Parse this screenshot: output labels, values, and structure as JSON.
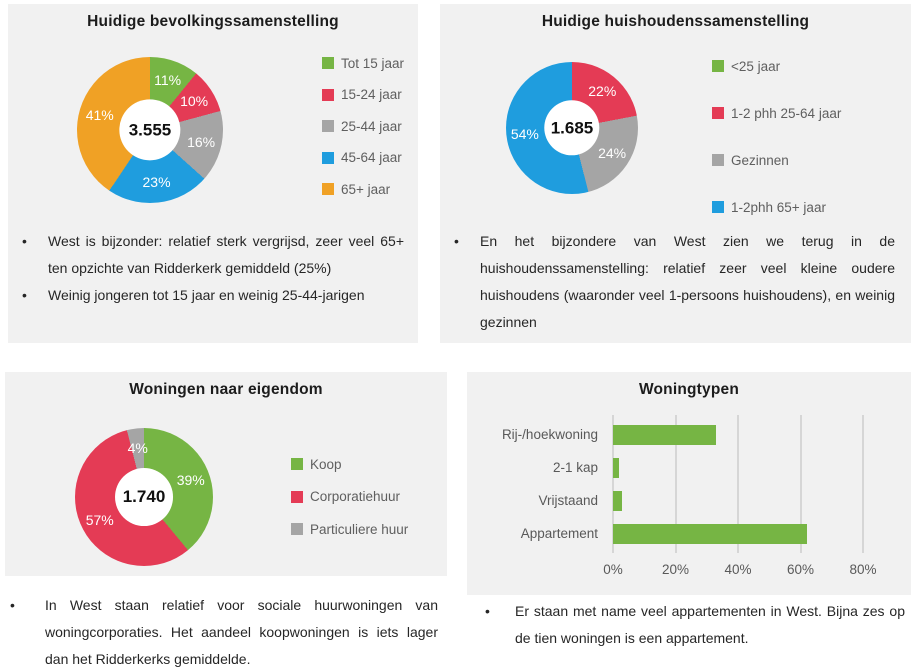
{
  "colors": {
    "green": "#76b544",
    "red": "#e43b55",
    "gray": "#a5a5a5",
    "blue": "#1f9dde",
    "orange": "#f0a125",
    "panel_background": "#f1f1f1",
    "gridline": "#d6d6d6",
    "legend_text": "#5f5f5f",
    "axis_text": "#595959"
  },
  "chart_data": [
    {
      "id": "bevolking",
      "type": "pie",
      "subtype": "donut",
      "title": "Huidige bevolkingssamenstelling",
      "center_label": "3.555",
      "legend_position": "right",
      "segments": [
        {
          "label": "Tot 15 jaar",
          "value": 11,
          "color": "#76b544"
        },
        {
          "label": "15-24 jaar",
          "value": 10,
          "color": "#e43b55"
        },
        {
          "label": "25-44 jaar",
          "value": 16,
          "color": "#a5a5a5"
        },
        {
          "label": "45-64 jaar",
          "value": 23,
          "color": "#1f9dde"
        },
        {
          "label": "65+ jaar",
          "value": 41,
          "color": "#f0a125"
        }
      ]
    },
    {
      "id": "huishoudens",
      "type": "pie",
      "subtype": "donut",
      "title": "Huidige huishoudenssamenstelling",
      "center_label": "1.685",
      "legend_position": "right",
      "segments": [
        {
          "label": "<25 jaar",
          "value": 0,
          "color": "#76b544"
        },
        {
          "label": "1-2 phh 25-64 jaar",
          "value": 22,
          "color": "#e43b55"
        },
        {
          "label": "Gezinnen",
          "value": 24,
          "color": "#a5a5a5"
        },
        {
          "label": "1-2phh 65+ jaar",
          "value": 54,
          "color": "#1f9dde"
        }
      ]
    },
    {
      "id": "eigendom",
      "type": "pie",
      "subtype": "donut",
      "title": "Woningen naar eigendom",
      "center_label": "1.740",
      "legend_position": "right",
      "segments": [
        {
          "label": "Koop",
          "value": 39,
          "color": "#76b544"
        },
        {
          "label": "Corporatiehuur",
          "value": 57,
          "color": "#e43b55"
        },
        {
          "label": "Particuliere huur",
          "value": 4,
          "color": "#a5a5a5"
        }
      ]
    },
    {
      "id": "woningtypen",
      "type": "bar",
      "orientation": "horizontal",
      "title": "Woningtypen",
      "categories": [
        "Rij-/hoekwoning",
        "2-1 kap",
        "Vrijstaand",
        "Appartement"
      ],
      "values": [
        33,
        2,
        3,
        62
      ],
      "bar_color": "#76b544",
      "xlim": [
        0,
        80
      ],
      "x_ticks": [
        "0%",
        "20%",
        "40%",
        "60%",
        "80%"
      ],
      "grid": true
    }
  ],
  "bullets": {
    "bevolking": [
      "West is bijzonder: relatief sterk vergrijsd, zeer veel 65+ ten opzichte van Ridderkerk gemiddeld (25%)",
      "Weinig jongeren tot 15 jaar en weinig 25-44-jarigen"
    ],
    "huishoudens": [
      "En het bijzondere van West zien we terug in de huishoudenssamenstelling: relatief zeer veel kleine oudere huishoudens (waaronder veel 1-persoons huishoudens), en weinig gezinnen"
    ],
    "eigendom": [
      "In West staan relatief voor sociale huurwoningen van woningcorporaties. Het aandeel koopwoningen is iets lager dan het Ridderkerks gemiddelde."
    ],
    "woningtypen": [
      "Er staan met name veel appartementen in West. Bijna zes op de tien woningen is een appartement."
    ]
  }
}
